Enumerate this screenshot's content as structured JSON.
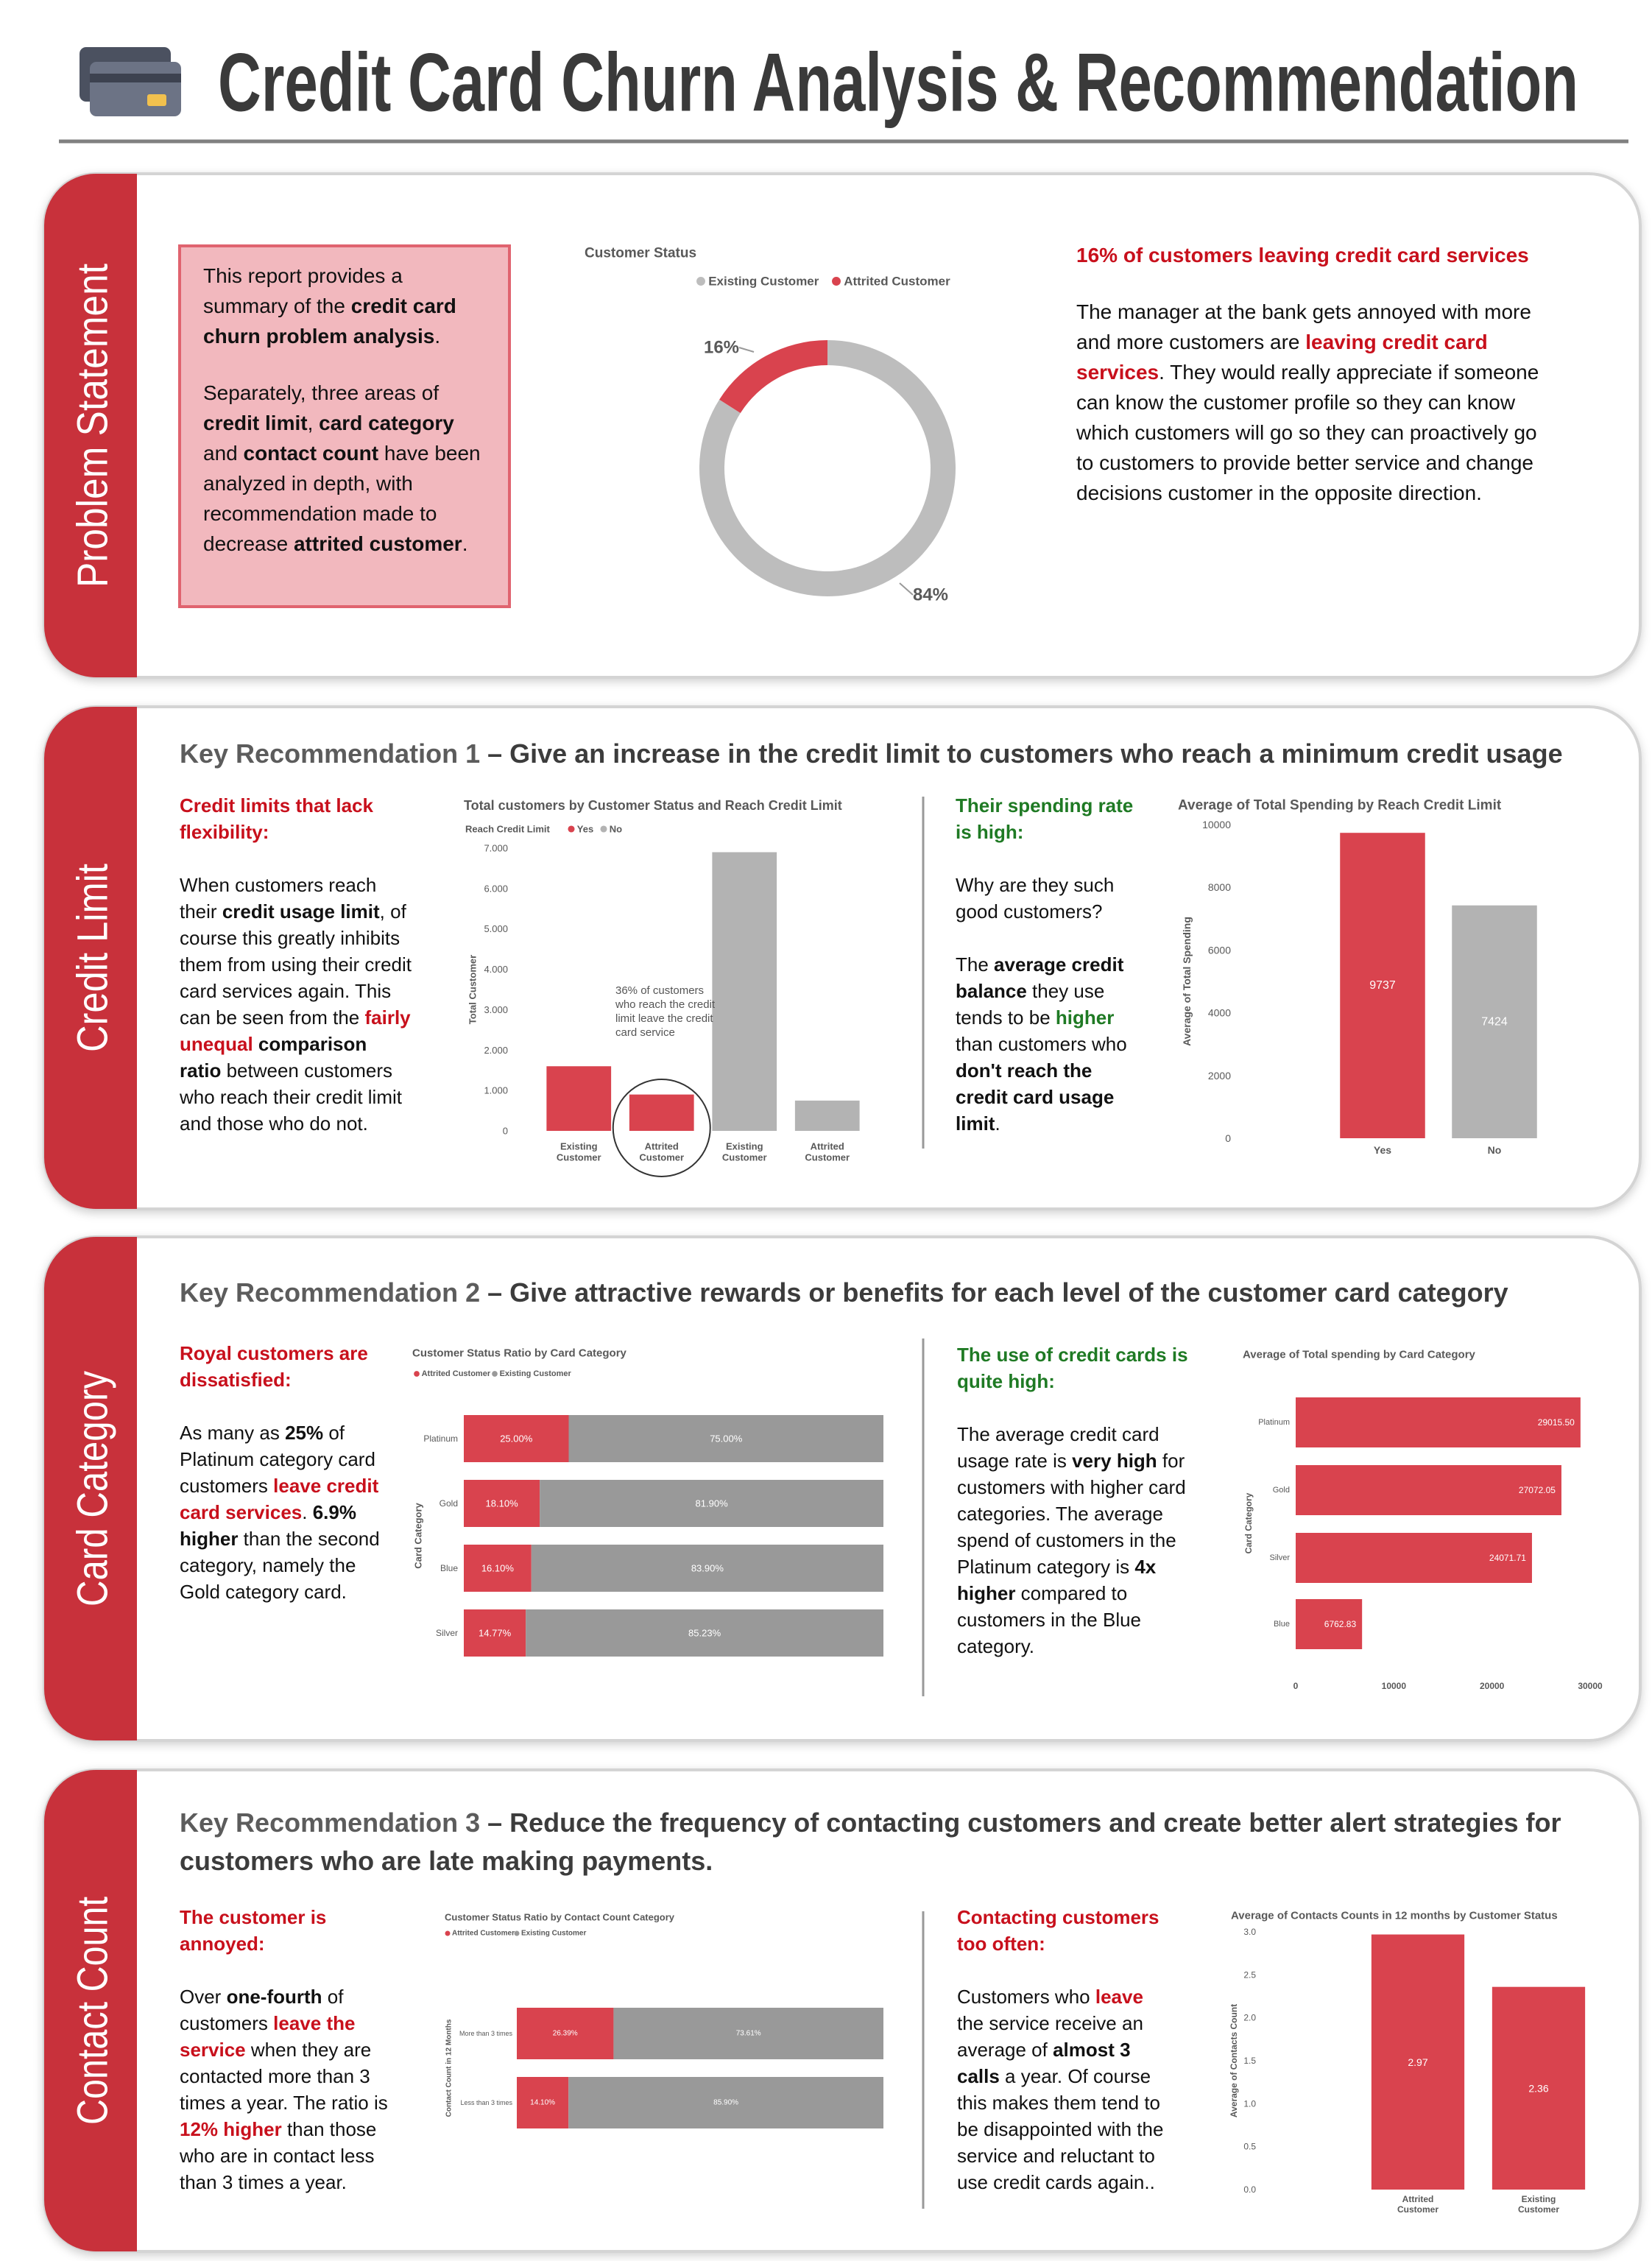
{
  "header": {
    "title": "Credit Card Churn Analysis & Recommendation"
  },
  "sections": [
    {
      "label": "Problem Statement",
      "left": {
        "paragraphs": [
          [
            {
              "t": "This report provides a summary of the "
            },
            {
              "t": "credit card churn problem analysis",
              "s": "b"
            },
            {
              "t": "."
            }
          ],
          [
            {
              "t": "Separately, three areas of "
            },
            {
              "t": "credit limit",
              "s": "b"
            },
            {
              "t": ", "
            },
            {
              "t": "card category",
              "s": "b"
            },
            {
              "t": " and "
            },
            {
              "t": "contact count",
              "s": "b"
            },
            {
              "t": " have been analyzed in depth, with recommendation made to decrease "
            },
            {
              "t": "attrited customer",
              "s": "b"
            },
            {
              "t": "."
            }
          ]
        ]
      },
      "right": {
        "heading": [
          {
            "t": "16% of customers leaving credit card services",
            "s": "r"
          }
        ],
        "paragraphs": [
          [
            {
              "t": "The manager at the bank gets annoyed with more and more customers are "
            },
            {
              "t": "leaving credit card services",
              "s": "r"
            },
            {
              "t": ". They would really appreciate if someone can know the customer profile so they can know which customers will go so they can proactively go to customers to provide better service and change decisions customer in the opposite direction."
            }
          ]
        ]
      }
    },
    {
      "label": "Credit Limit",
      "heading": [
        {
          "t": "Key Recommendation 1",
          "s": "m"
        },
        {
          "t": " – Give an increase in the credit limit to customers who reach a minimum credit usage",
          "s": "h"
        }
      ],
      "left": {
        "heading": [
          {
            "t": "Credit limits that lack flexibility:",
            "s": "r"
          }
        ],
        "paragraphs": [
          [
            {
              "t": "When customers reach their "
            },
            {
              "t": "credit usage limit",
              "s": "b"
            },
            {
              "t": ", of course this greatly inhibits them from using their credit card services again. This can be seen from the "
            },
            {
              "t": "fairly unequal",
              "s": "r"
            },
            {
              "t": " "
            },
            {
              "t": "comparison ratio",
              "s": "b"
            },
            {
              "t": " between customers who reach their credit limit and those who do not."
            }
          ]
        ]
      },
      "right": {
        "heading": [
          {
            "t": "Their spending rate is high:",
            "s": "g"
          }
        ],
        "paragraphs": [
          [
            {
              "t": "Why are they such good customers?"
            }
          ],
          [
            {
              "t": "The "
            },
            {
              "t": "average credit balance",
              "s": "b"
            },
            {
              "t": " they use tends to be "
            },
            {
              "t": "higher",
              "s": "g"
            },
            {
              "t": " than customers who "
            },
            {
              "t": "don't reach the credit card usage limit",
              "s": "b"
            },
            {
              "t": "."
            }
          ]
        ]
      }
    },
    {
      "label": "Card Category",
      "heading": [
        {
          "t": "Key Recommendation 2",
          "s": "m"
        },
        {
          "t": " – Give attractive rewards or benefits for each level of the customer card category",
          "s": "h"
        }
      ],
      "left": {
        "heading": [
          {
            "t": "Royal customers are dissatisfied:",
            "s": "r"
          }
        ],
        "paragraphs": [
          [
            {
              "t": "As many as "
            },
            {
              "t": "25%",
              "s": "b"
            },
            {
              "t": " of Platinum category card customers "
            },
            {
              "t": "leave credit card services",
              "s": "r"
            },
            {
              "t": ". "
            },
            {
              "t": "6.9% higher",
              "s": "b"
            },
            {
              "t": " than the second category, namely the Gold category card."
            }
          ]
        ]
      },
      "right": {
        "heading": [
          {
            "t": "The use of credit cards is quite high:",
            "s": "g"
          }
        ],
        "paragraphs": [
          [
            {
              "t": "The average credit card usage rate is "
            },
            {
              "t": "very high",
              "s": "b"
            },
            {
              "t": " for customers with higher card categories. The average spend of customers in the Platinum category is "
            },
            {
              "t": "4x higher",
              "s": "b"
            },
            {
              "t": " compared to customers in the Blue category."
            }
          ]
        ]
      }
    },
    {
      "label": "Contact Count",
      "heading": [
        {
          "t": "Key Recommendation 3",
          "s": "m"
        },
        {
          "t": " – Reduce the frequency of contacting customers and create better alert strategies for customers who are late making payments.",
          "s": "h"
        }
      ],
      "left": {
        "heading": [
          {
            "t": "The customer is annoyed:",
            "s": "r"
          }
        ],
        "paragraphs": [
          [
            {
              "t": "Over "
            },
            {
              "t": "one-fourth",
              "s": "b"
            },
            {
              "t": " of customers "
            },
            {
              "t": "leave the service",
              "s": "r"
            },
            {
              "t": " when they are contacted more than 3 times a year. The ratio is "
            },
            {
              "t": "12% higher",
              "s": "r"
            },
            {
              "t": " than those who are in contact less than 3 times a year."
            }
          ]
        ]
      },
      "right": {
        "heading": [
          {
            "t": "Contacting customers too often:",
            "s": "r"
          }
        ],
        "paragraphs": [
          [
            {
              "t": "Customers who "
            },
            {
              "t": "leave",
              "s": "r"
            },
            {
              "t": " the service receive an average of "
            },
            {
              "t": "almost 3 calls",
              "s": "b"
            },
            {
              "t": " a year. Of course this makes them tend to be disappointed with the service and reluctant to use credit cards again.."
            }
          ]
        ]
      }
    }
  ],
  "chart_data": [
    {
      "type": "donut",
      "title": "Customer Status",
      "categories": [
        "Existing Customer",
        "Attrited Customer"
      ],
      "values": [
        84,
        16
      ],
      "value_labels": [
        "84%",
        "16%"
      ],
      "colors": [
        "#bdbdbd",
        "#d9434e"
      ],
      "legend": "top"
    },
    {
      "type": "bar",
      "title": "Total customers by Customer Status and Reach Credit Limit",
      "legend_title": "Reach Credit Limit",
      "categories": [
        "Existing Customer",
        "Attrited Customer",
        "Existing Customer",
        "Attrited Customer"
      ],
      "series": [
        {
          "name": "Yes",
          "color": "#d9434e",
          "values": [
            1600,
            900,
            null,
            null
          ]
        },
        {
          "name": "No",
          "color": "#b3b3b3",
          "values": [
            null,
            null,
            6900,
            750
          ]
        }
      ],
      "ylabel": "Total Customer",
      "ylim": [
        0,
        7000
      ],
      "yticks": [
        0,
        {
          "value": 1000,
          "label": "1.000"
        },
        {
          "value": 2000,
          "label": "2.000"
        },
        {
          "value": 3000,
          "label": "3.000"
        },
        {
          "value": 4000,
          "label": "4.000"
        },
        {
          "value": 5000,
          "label": "5.000"
        },
        {
          "value": 6000,
          "label": "6.000"
        },
        {
          "value": 7000,
          "label": "7.000"
        }
      ],
      "annotation": "36% of customers who reach the credit limit leave the credit card service",
      "grid": false
    },
    {
      "type": "bar",
      "title": "Average of Total Spending by Reach Credit Limit",
      "categories": [
        "Yes",
        "No"
      ],
      "values": [
        9737,
        7424
      ],
      "colors": [
        "#d9434e",
        "#b3b3b3"
      ],
      "ylabel": "Average of Total Spending",
      "ylim": [
        0,
        10000
      ],
      "yticks": [
        0,
        2000,
        4000,
        6000,
        8000,
        10000
      ],
      "data_labels": true,
      "grid": false
    },
    {
      "type": "stackedhbar",
      "title": "Customer Status Ratio by Card Category",
      "ylabel": "Card Category",
      "categories": [
        "Platinum",
        "Gold",
        "Blue",
        "Silver"
      ],
      "series": [
        {
          "name": "Attrited Customer",
          "color": "#d9434e",
          "values": [
            25,
            18.1,
            16.1,
            14.77
          ],
          "value_labels": [
            "25.00%",
            "18.10%",
            "16.10%",
            "14.77%"
          ]
        },
        {
          "name": "Existing Customer",
          "color": "#999999",
          "values": [
            75,
            81.9,
            83.9,
            85.23
          ],
          "value_labels": [
            "75.00%",
            "81.90%",
            "83.90%",
            "85.23%"
          ]
        }
      ]
    },
    {
      "type": "hbar",
      "title": "Average of Total spending by Card Category",
      "ylabel": "Card Category",
      "categories": [
        "Platinum",
        "Gold",
        "Silver",
        "Blue"
      ],
      "values": [
        29015.5,
        27072.05,
        24071.71,
        6762.83
      ],
      "value_labels": [
        "29015.50",
        "27072.05",
        "24071.71",
        "6762.83"
      ],
      "color": "#d9434e",
      "xlim": [
        0,
        30000
      ],
      "xticks": [
        0,
        10000,
        20000,
        30000
      ],
      "grid": false
    },
    {
      "type": "stackedhbar",
      "title": "Customer Status Ratio by Contact Count Category",
      "ylabel": "Contact Count in 12 Months",
      "categories": [
        "More than 3 times",
        "Less than 3 times"
      ],
      "series": [
        {
          "name": "Attrited Customer",
          "color": "#d9434e",
          "values": [
            26.39,
            14.1
          ],
          "value_labels": [
            "26.39%",
            "14.10%"
          ]
        },
        {
          "name": "Existing Customer",
          "color": "#999999",
          "values": [
            73.61,
            85.9
          ],
          "value_labels": [
            "73.61%",
            "85.90%"
          ]
        }
      ]
    },
    {
      "type": "bar",
      "title": "Average of Contacts Counts in 12 months by Customer Status",
      "categories": [
        "Attrited Customer",
        "Existing Customer"
      ],
      "values": [
        2.97,
        2.36
      ],
      "colors": [
        "#d9434e",
        "#d9434e"
      ],
      "ylabel": "Average of Contacts Count",
      "ylim": [
        0,
        3
      ],
      "yticks": [
        {
          "value": 0,
          "label": "0.0"
        },
        0.5,
        {
          "value": 1,
          "label": "1.0"
        },
        1.5,
        {
          "value": 2,
          "label": "2.0"
        },
        2.5,
        {
          "value": 3,
          "label": "3.0"
        }
      ],
      "data_labels": true,
      "grid": false
    }
  ]
}
